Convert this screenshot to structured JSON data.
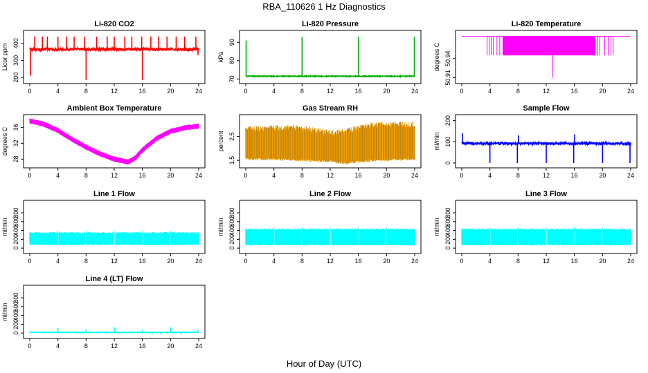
{
  "page": {
    "title": "RBA_110626  1 Hz Diagnostics",
    "xlabel": "Hour of Day (UTC)"
  },
  "chart_data": [
    {
      "type": "line",
      "title": "Li-820 CO2",
      "ylabel": "Licor ppm",
      "color": "#ff0000",
      "x_ticks": [
        0,
        4,
        8,
        12,
        16,
        20,
        24
      ],
      "y_ticks": [
        200,
        300,
        400
      ],
      "ylim": [
        180,
        460
      ],
      "baseline": 365,
      "noise": 8,
      "spikes": [
        {
          "x": 0.1,
          "y": 210
        },
        {
          "x": 0.7,
          "y": 440
        },
        {
          "x": 1.8,
          "y": 440
        },
        {
          "x": 2.5,
          "y": 440
        },
        {
          "x": 4.0,
          "y": 440
        },
        {
          "x": 5.2,
          "y": 440
        },
        {
          "x": 6.3,
          "y": 440
        },
        {
          "x": 7.8,
          "y": 440
        },
        {
          "x": 8.0,
          "y": 185
        },
        {
          "x": 9.5,
          "y": 440
        },
        {
          "x": 11.0,
          "y": 440
        },
        {
          "x": 12.0,
          "y": 440
        },
        {
          "x": 13.5,
          "y": 440
        },
        {
          "x": 14.5,
          "y": 440
        },
        {
          "x": 15.9,
          "y": 440
        },
        {
          "x": 16.0,
          "y": 185
        },
        {
          "x": 17.2,
          "y": 440
        },
        {
          "x": 18.3,
          "y": 440
        },
        {
          "x": 19.5,
          "y": 440
        },
        {
          "x": 20.8,
          "y": 440
        },
        {
          "x": 22.0,
          "y": 440
        },
        {
          "x": 23.6,
          "y": 440
        },
        {
          "x": 23.9,
          "y": 330
        }
      ]
    },
    {
      "type": "line",
      "title": "Li-820 Pressure",
      "ylabel": "kPa",
      "color": "#00b000",
      "x_ticks": [
        0,
        4,
        8,
        12,
        16,
        20,
        24
      ],
      "y_ticks": [
        70,
        80,
        90
      ],
      "ylim": [
        69,
        95
      ],
      "baseline": 71.5,
      "noise": 0.2,
      "spikes": [
        {
          "x": 0.05,
          "y": 91
        },
        {
          "x": 8.0,
          "y": 93
        },
        {
          "x": 16.0,
          "y": 93
        },
        {
          "x": 23.95,
          "y": 93
        }
      ]
    },
    {
      "type": "step",
      "title": "Li-820 Temperature",
      "ylabel": "degrees C",
      "color": "#ff00ff",
      "x_ticks": [
        0,
        4,
        8,
        12,
        16,
        20,
        24
      ],
      "y_ticks": [
        50.91,
        50.94
      ],
      "ylim": [
        50.905,
        50.98
      ],
      "high": 50.975,
      "low": 50.945,
      "dense_range": [
        5.8,
        19.0
      ],
      "sparse_flips": [
        3.6,
        3.9,
        4.2,
        4.5,
        5.0,
        5.4,
        19.3,
        19.6,
        20.3,
        20.8,
        21.2,
        21.5
      ],
      "min_spike": {
        "x": 12.9,
        "y": 50.91
      }
    },
    {
      "type": "band",
      "title": "Ambient Box Temperature",
      "ylabel": "degrees C",
      "color": "#ff00ff",
      "x_ticks": [
        0,
        4,
        8,
        12,
        16,
        20,
        24
      ],
      "y_ticks": [
        28,
        32,
        36
      ],
      "ylim": [
        26.5,
        38.5
      ],
      "curve": [
        {
          "x": 0,
          "y": 37.6
        },
        {
          "x": 2,
          "y": 36.8
        },
        {
          "x": 4,
          "y": 35.2
        },
        {
          "x": 6,
          "y": 33.0
        },
        {
          "x": 8,
          "y": 31.0
        },
        {
          "x": 10,
          "y": 29.3
        },
        {
          "x": 12,
          "y": 28.0
        },
        {
          "x": 14,
          "y": 27.3
        },
        {
          "x": 15,
          "y": 28.3
        },
        {
          "x": 16,
          "y": 30.3
        },
        {
          "x": 18,
          "y": 33.2
        },
        {
          "x": 20,
          "y": 35.0
        },
        {
          "x": 22,
          "y": 35.9
        },
        {
          "x": 24,
          "y": 36.3
        }
      ],
      "band_width": 0.9
    },
    {
      "type": "band-noisy",
      "title": "Gas Stream RH",
      "ylabel": "percent",
      "color": "#ffa500",
      "color2": "#8b6914",
      "x_ticks": [
        0,
        4,
        8,
        12,
        16,
        20,
        24
      ],
      "y_ticks": [
        1.5,
        2.5
      ],
      "y_tick_labels": [
        "1.5",
        "2.5"
      ],
      "ylim": [
        1.3,
        3.3
      ],
      "upper": [
        {
          "x": 0,
          "y": 2.75
        },
        {
          "x": 4,
          "y": 2.8
        },
        {
          "x": 8,
          "y": 2.8
        },
        {
          "x": 12,
          "y": 2.6
        },
        {
          "x": 14,
          "y": 2.65
        },
        {
          "x": 18,
          "y": 2.95
        },
        {
          "x": 24,
          "y": 2.95
        }
      ],
      "lower": [
        {
          "x": 0,
          "y": 1.6
        },
        {
          "x": 4,
          "y": 1.6
        },
        {
          "x": 8,
          "y": 1.55
        },
        {
          "x": 12,
          "y": 1.5
        },
        {
          "x": 14,
          "y": 1.42
        },
        {
          "x": 18,
          "y": 1.55
        },
        {
          "x": 24,
          "y": 1.6
        }
      ]
    },
    {
      "type": "line",
      "title": "Sample Flow",
      "ylabel": "ml/min",
      "color": "#0000ff",
      "x_ticks": [
        0,
        4,
        8,
        12,
        16,
        20,
        24
      ],
      "y_ticks": [
        0,
        100,
        200
      ],
      "ylim": [
        -10,
        215
      ],
      "baseline": 92,
      "noise": 5,
      "spikes": [
        {
          "x": 0.1,
          "y": 140
        },
        {
          "x": 4.0,
          "y": 0
        },
        {
          "x": 7.9,
          "y": 0
        },
        {
          "x": 8.05,
          "y": 130
        },
        {
          "x": 12.0,
          "y": 0
        },
        {
          "x": 15.9,
          "y": 0
        },
        {
          "x": 16.05,
          "y": 135
        },
        {
          "x": 20.0,
          "y": 0
        },
        {
          "x": 23.9,
          "y": 0
        }
      ]
    },
    {
      "type": "band-dense",
      "title": "Line 1 Flow",
      "ylabel": "ml/min",
      "color": "#00ffff",
      "x_ticks": [
        0,
        4,
        8,
        12,
        16,
        20,
        24
      ],
      "y_ticks": [
        0,
        200,
        400,
        600,
        800
      ],
      "ylim": [
        -60,
        1020
      ],
      "top": 350,
      "bottom": 75,
      "gaps": [
        4,
        8,
        12,
        16,
        20
      ]
    },
    {
      "type": "band-dense",
      "title": "Line 2 Flow",
      "ylabel": "ml/min",
      "color": "#00ffff",
      "x_ticks": [
        0,
        4,
        8,
        12,
        16,
        20,
        24
      ],
      "y_ticks": [
        0,
        200,
        400,
        600,
        800
      ],
      "ylim": [
        -60,
        1020
      ],
      "top": 430,
      "bottom": 70,
      "gaps": [
        4,
        8,
        12,
        16,
        20
      ]
    },
    {
      "type": "band-dense",
      "title": "Line 3 Flow",
      "ylabel": "ml/min",
      "color": "#00ffff",
      "x_ticks": [
        0,
        4,
        8,
        12,
        16,
        20,
        24
      ],
      "y_ticks": [
        0,
        200,
        400,
        600,
        800
      ],
      "ylim": [
        -60,
        1020
      ],
      "top": 430,
      "bottom": 70,
      "gaps": [
        4,
        8,
        12,
        16,
        20
      ]
    },
    {
      "type": "line",
      "title": "Line 4 (LT) Flow",
      "ylabel": "ml/min",
      "color": "#00ffff",
      "x_ticks": [
        0,
        4,
        8,
        12,
        16,
        20,
        24
      ],
      "y_ticks": [
        0,
        200,
        400,
        600,
        800
      ],
      "ylim": [
        -60,
        1020
      ],
      "baseline": 15,
      "noise": 6,
      "spikes": [
        {
          "x": 4.0,
          "y": 120
        },
        {
          "x": 8.0,
          "y": 85
        },
        {
          "x": 12.0,
          "y": 130
        },
        {
          "x": 16.0,
          "y": 75
        },
        {
          "x": 17.4,
          "y": -25
        },
        {
          "x": 18.6,
          "y": -25
        },
        {
          "x": 20.0,
          "y": 130
        },
        {
          "x": 21.5,
          "y": -30
        },
        {
          "x": 23.9,
          "y": 80
        }
      ]
    }
  ]
}
